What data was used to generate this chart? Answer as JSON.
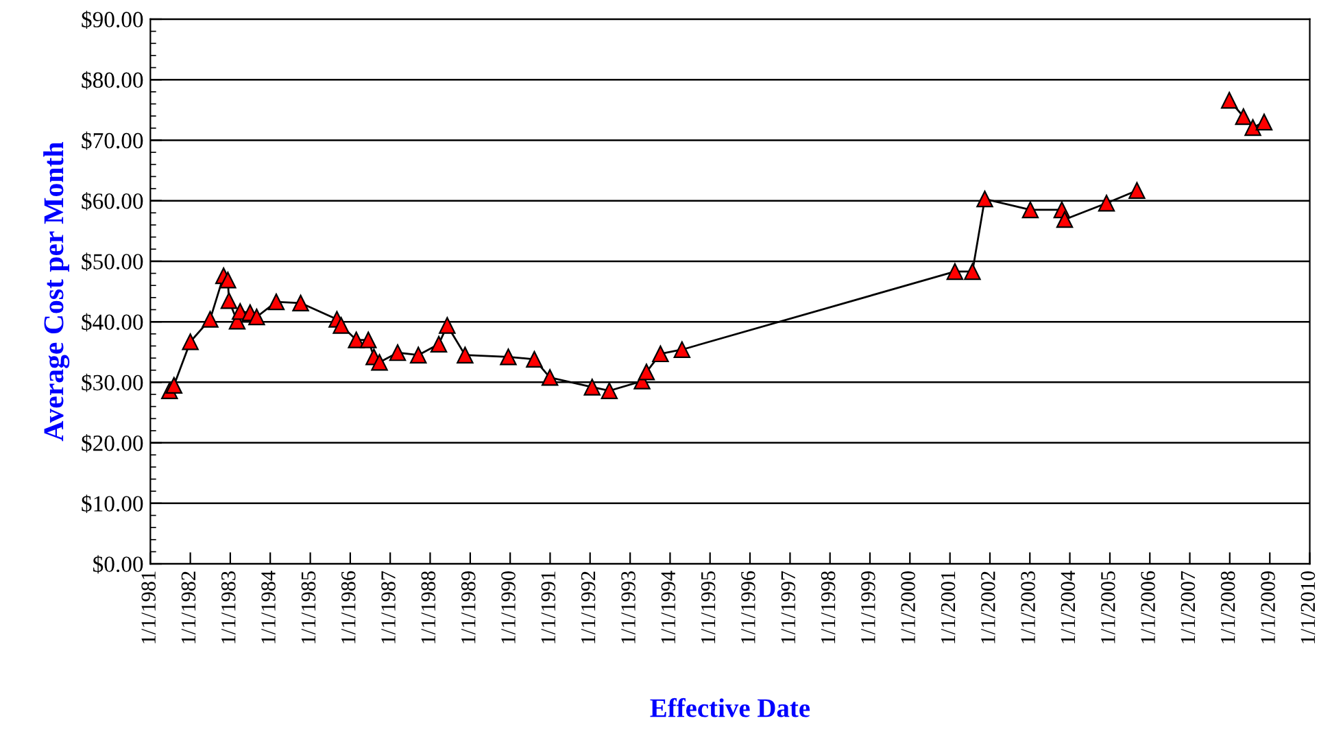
{
  "chart_data": {
    "type": "line",
    "xlabel": "Effective Date",
    "ylabel": "Average Cost per Month",
    "x": [
      "1981-06-25",
      "1981-08-05",
      "1982-01-01",
      "1982-07-01",
      "1982-11-01",
      "1982-12-10",
      "1982-12-20",
      "1983-03-05",
      "1983-04-01",
      "1983-07-01",
      "1983-08-30",
      "1984-02-25",
      "1984-10-05",
      "1985-09-01",
      "1985-10-10",
      "1986-02-25",
      "1986-06-15",
      "1986-08-05",
      "1986-09-25",
      "1987-03-10",
      "1987-09-15",
      "1988-03-20",
      "1988-06-05",
      "1988-11-15",
      "1989-12-15",
      "1990-08-10",
      "1990-12-30",
      "1992-01-20",
      "1992-06-25",
      "1993-04-20",
      "1993-05-30",
      "1993-10-05",
      "1994-04-20",
      "2001-02-15",
      "2001-07-25",
      "2001-11-15",
      "2003-01-05",
      "2003-10-20",
      "2003-11-15",
      "2004-12-01",
      "2005-09-05",
      "2006-10-01",
      "2007-12-28",
      "2008-05-05",
      "2008-07-30",
      "2008-11-10"
    ],
    "series": [
      {
        "color": "#ff0000",
        "values": [
          28.6,
          29.5,
          36.7,
          40.4,
          47.6,
          46.9,
          43.5,
          40.1,
          41.7,
          41.5,
          40.8,
          43.3,
          43.1,
          40.4,
          39.4,
          37.0,
          37.0,
          34.2,
          33.3,
          34.9,
          34.5,
          36.3,
          39.4,
          34.5,
          34.2,
          33.8,
          30.8,
          29.2,
          28.6,
          30.2,
          31.7,
          34.7,
          35.4,
          48.3,
          48.3,
          60.3,
          58.5,
          58.5,
          56.9,
          59.6,
          61.7,
          null,
          76.6,
          73.9,
          72.1,
          73.0
        ]
      }
    ],
    "marker": "triangle",
    "line_style": "solid",
    "grid": "y",
    "legend": false,
    "ylim": [
      0,
      90
    ],
    "yticks": [
      {
        "value": 0,
        "label": "$0.00"
      },
      {
        "value": 10,
        "label": "$10.00"
      },
      {
        "value": 20,
        "label": "$20.00"
      },
      {
        "value": 30,
        "label": "$30.00"
      },
      {
        "value": 40,
        "label": "$40.00"
      },
      {
        "value": 50,
        "label": "$50.00"
      },
      {
        "value": 60,
        "label": "$60.00"
      },
      {
        "value": 70,
        "label": "$70.00"
      },
      {
        "value": 80,
        "label": "$80.00"
      },
      {
        "value": 90,
        "label": "$90.00"
      }
    ],
    "xlim": [
      "1981-01-01",
      "2010-01-01"
    ],
    "xticks": [
      {
        "value": "1981-01-01",
        "label": "1/1/1981"
      },
      {
        "value": "1982-01-01",
        "label": "1/1/1982"
      },
      {
        "value": "1983-01-01",
        "label": "1/1/1983"
      },
      {
        "value": "1984-01-01",
        "label": "1/1/1984"
      },
      {
        "value": "1985-01-01",
        "label": "1/1/1985"
      },
      {
        "value": "1986-01-01",
        "label": "1/1/1986"
      },
      {
        "value": "1987-01-01",
        "label": "1/1/1987"
      },
      {
        "value": "1988-01-01",
        "label": "1/1/1988"
      },
      {
        "value": "1989-01-01",
        "label": "1/1/1989"
      },
      {
        "value": "1990-01-01",
        "label": "1/1/1990"
      },
      {
        "value": "1991-01-01",
        "label": "1/1/1991"
      },
      {
        "value": "1992-01-01",
        "label": "1/1/1992"
      },
      {
        "value": "1993-01-01",
        "label": "1/1/1993"
      },
      {
        "value": "1994-01-01",
        "label": "1/1/1994"
      },
      {
        "value": "1995-01-01",
        "label": "1/1/1995"
      },
      {
        "value": "1996-01-01",
        "label": "1/1/1996"
      },
      {
        "value": "1997-01-01",
        "label": "1/1/1997"
      },
      {
        "value": "1998-01-01",
        "label": "1/1/1998"
      },
      {
        "value": "1999-01-01",
        "label": "1/1/1999"
      },
      {
        "value": "2000-01-01",
        "label": "1/1/2000"
      },
      {
        "value": "2001-01-01",
        "label": "1/1/2001"
      },
      {
        "value": "2002-01-01",
        "label": "1/1/2002"
      },
      {
        "value": "2003-01-01",
        "label": "1/1/2003"
      },
      {
        "value": "2004-01-01",
        "label": "1/1/2004"
      },
      {
        "value": "2005-01-01",
        "label": "1/1/2005"
      },
      {
        "value": "2006-01-01",
        "label": "1/1/2006"
      },
      {
        "value": "2007-01-01",
        "label": "1/1/2007"
      },
      {
        "value": "2008-01-01",
        "label": "1/1/2008"
      },
      {
        "value": "2009-01-01",
        "label": "1/1/2009"
      },
      {
        "value": "2010-01-01",
        "label": "1/1/2010"
      }
    ]
  }
}
